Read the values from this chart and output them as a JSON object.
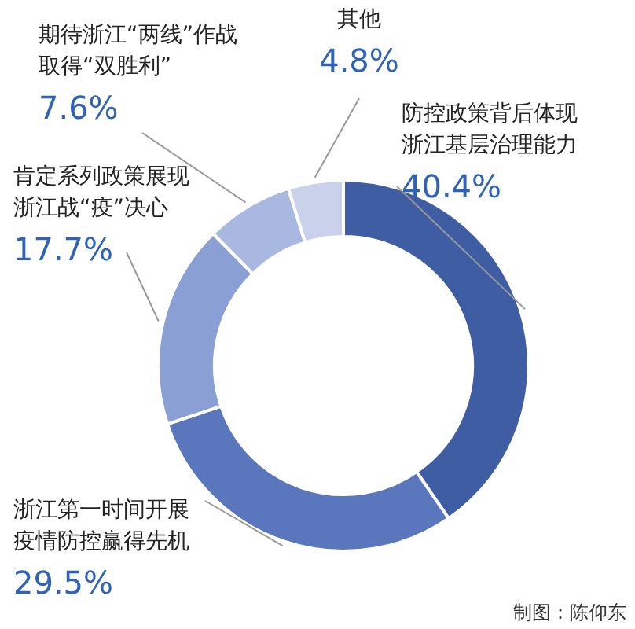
{
  "chart_data": {
    "type": "donut",
    "categories": [
      "防控政策背后体现浙江基层治理能力",
      "浙江第一时间开展疫情防控赢得先机",
      "肯定系列政策展现浙江战“疫”决心",
      "期待浙江“两线”作战取得“双胜利”",
      "其他"
    ],
    "values": [
      40.4,
      29.5,
      17.7,
      7.6,
      4.8
    ],
    "value_labels": [
      "40.4%",
      "29.5%",
      "17.7%",
      "7.6%",
      "4.8%"
    ],
    "colors": [
      "#3f5da3",
      "#5a76bd",
      "#8a9fd4",
      "#a9b8e0",
      "#c9d2ea"
    ],
    "annotations": [
      "制图：陈仰东"
    ]
  }
}
